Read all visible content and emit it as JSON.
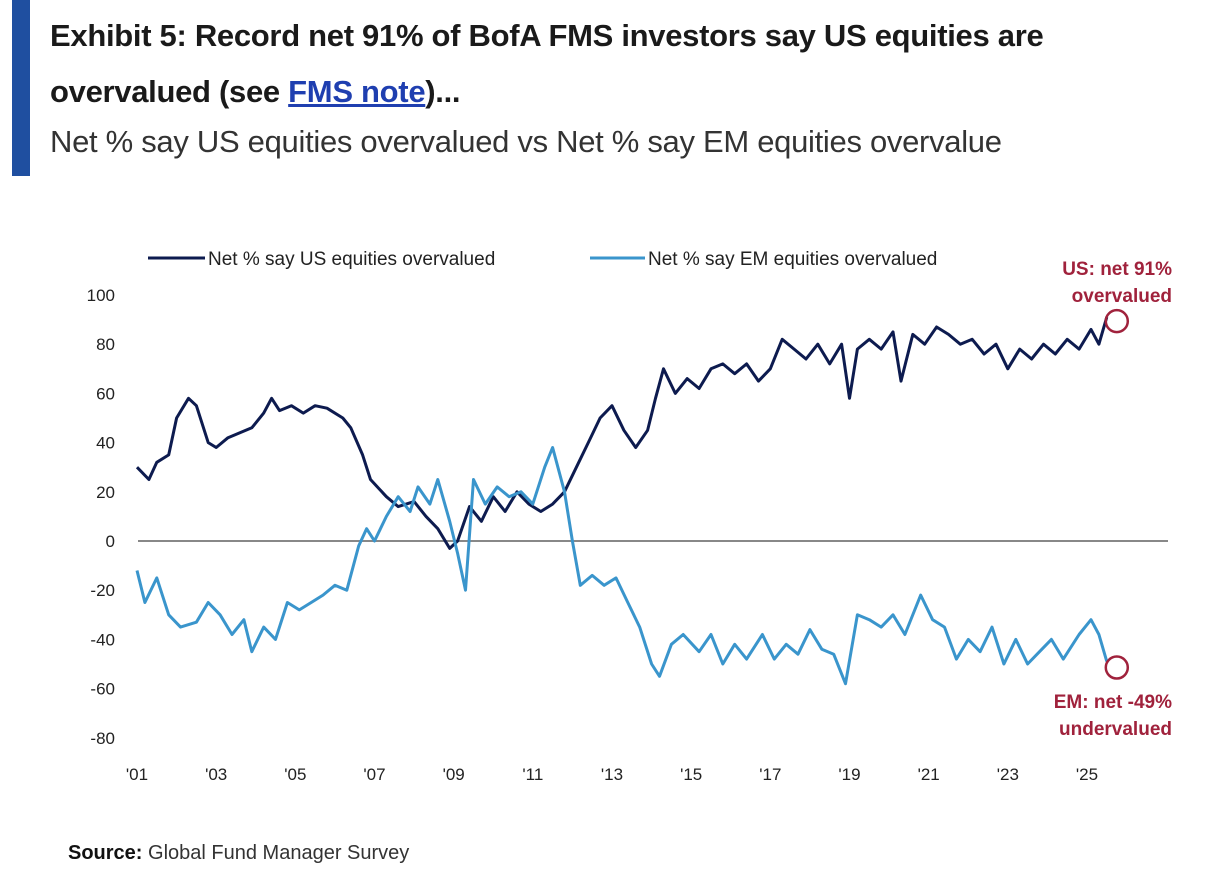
{
  "header": {
    "title_part1": "Exhibit 5: Record net 91% of BofA FMS investors say US equities are overvalued (see ",
    "title_link": "FMS note",
    "title_part2": ")...",
    "subtitle": "Net % say US equities overvalued vs Net % say EM equities overvalue"
  },
  "source": {
    "label": "Source:",
    "text": "Global Fund Manager Survey"
  },
  "colors": {
    "us": "#0d1b4f",
    "em": "#3a95cc",
    "annotation": "#a0223c",
    "accent": "#1f4fa0",
    "zero_line": "#888888"
  },
  "chart_data": {
    "type": "line",
    "ylim": [
      -80,
      100
    ],
    "yticks": [
      "100",
      "80",
      "60",
      "40",
      "20",
      "0",
      "-20",
      "-40",
      "-60",
      "-80"
    ],
    "xlim": [
      2001,
      2025
    ],
    "xticks": [
      "'01",
      "'03",
      "'05",
      "'07",
      "'09",
      "'11",
      "'13",
      "'15",
      "'17",
      "'19",
      "'21",
      "'23",
      "'25"
    ],
    "legend_position": "top",
    "grid": false,
    "series": [
      {
        "name": "Net % say US equities overvalued",
        "color": "#0d1b4f",
        "x": [
          2001.0,
          2001.3,
          2001.5,
          2001.8,
          2002.0,
          2002.3,
          2002.5,
          2002.8,
          2003.0,
          2003.3,
          2003.6,
          2003.9,
          2004.2,
          2004.4,
          2004.6,
          2004.9,
          2005.2,
          2005.5,
          2005.8,
          2006.2,
          2006.4,
          2006.7,
          2006.9,
          2007.3,
          2007.6,
          2008.0,
          2008.3,
          2008.6,
          2008.9,
          2009.1,
          2009.4,
          2009.7,
          2010.0,
          2010.3,
          2010.6,
          2010.9,
          2011.2,
          2011.5,
          2011.8,
          2012.1,
          2012.4,
          2012.7,
          2013.0,
          2013.3,
          2013.6,
          2013.9,
          2014.1,
          2014.3,
          2014.6,
          2014.9,
          2015.2,
          2015.5,
          2015.8,
          2016.1,
          2016.4,
          2016.7,
          2017.0,
          2017.3,
          2017.6,
          2017.9,
          2018.2,
          2018.5,
          2018.8,
          2019.0,
          2019.2,
          2019.5,
          2019.8,
          2020.1,
          2020.3,
          2020.6,
          2020.9,
          2021.2,
          2021.5,
          2021.8,
          2022.1,
          2022.4,
          2022.7,
          2023.0,
          2023.3,
          2023.6,
          2023.9,
          2024.2,
          2024.5,
          2024.8,
          2025.1,
          2025.3,
          2025.5
        ],
        "values": [
          30,
          25,
          32,
          35,
          50,
          58,
          55,
          40,
          38,
          42,
          44,
          46,
          52,
          58,
          53,
          55,
          52,
          55,
          54,
          50,
          46,
          35,
          25,
          18,
          14,
          16,
          10,
          5,
          -3,
          0,
          14,
          8,
          18,
          12,
          20,
          15,
          12,
          15,
          20,
          30,
          40,
          50,
          55,
          45,
          38,
          45,
          58,
          70,
          60,
          66,
          62,
          70,
          72,
          68,
          72,
          65,
          70,
          82,
          78,
          74,
          80,
          72,
          80,
          58,
          78,
          82,
          78,
          85,
          65,
          84,
          80,
          87,
          84,
          80,
          82,
          76,
          80,
          70,
          78,
          74,
          80,
          76,
          82,
          78,
          86,
          80,
          91
        ]
      },
      {
        "name": "Net % say EM equities overvalued",
        "color": "#3a95cc",
        "x": [
          2001.0,
          2001.2,
          2001.5,
          2001.8,
          2002.1,
          2002.5,
          2002.8,
          2003.1,
          2003.4,
          2003.7,
          2003.9,
          2004.2,
          2004.5,
          2004.8,
          2005.1,
          2005.4,
          2005.7,
          2006.0,
          2006.3,
          2006.6,
          2006.8,
          2007.0,
          2007.3,
          2007.6,
          2007.9,
          2008.1,
          2008.4,
          2008.6,
          2008.9,
          2009.1,
          2009.3,
          2009.5,
          2009.8,
          2010.1,
          2010.4,
          2010.7,
          2011.0,
          2011.3,
          2011.5,
          2011.8,
          2012.0,
          2012.2,
          2012.5,
          2012.8,
          2013.1,
          2013.4,
          2013.7,
          2014.0,
          2014.2,
          2014.5,
          2014.8,
          2015.2,
          2015.5,
          2015.8,
          2016.1,
          2016.4,
          2016.8,
          2017.1,
          2017.4,
          2017.7,
          2018.0,
          2018.3,
          2018.6,
          2018.9,
          2019.2,
          2019.5,
          2019.8,
          2020.1,
          2020.4,
          2020.8,
          2021.1,
          2021.4,
          2021.7,
          2022.0,
          2022.3,
          2022.6,
          2022.9,
          2023.2,
          2023.5,
          2023.8,
          2024.1,
          2024.4,
          2024.8,
          2025.1,
          2025.3,
          2025.5
        ],
        "values": [
          -12,
          -25,
          -15,
          -30,
          -35,
          -33,
          -25,
          -30,
          -38,
          -32,
          -45,
          -35,
          -40,
          -25,
          -28,
          -25,
          -22,
          -18,
          -20,
          -2,
          5,
          0,
          10,
          18,
          12,
          22,
          15,
          25,
          8,
          -5,
          -20,
          25,
          15,
          22,
          18,
          20,
          15,
          30,
          38,
          20,
          0,
          -18,
          -14,
          -18,
          -15,
          -25,
          -35,
          -50,
          -55,
          -42,
          -38,
          -45,
          -38,
          -50,
          -42,
          -48,
          -38,
          -48,
          -42,
          -46,
          -36,
          -44,
          -46,
          -58,
          -30,
          -32,
          -35,
          -30,
          -38,
          -22,
          -32,
          -35,
          -48,
          -40,
          -45,
          -35,
          -50,
          -40,
          -50,
          -45,
          -40,
          -48,
          -38,
          -32,
          -38,
          -49
        ]
      }
    ],
    "annotations": [
      {
        "series": 0,
        "line1": "US: net 91%",
        "line2": "overvalued"
      },
      {
        "series": 1,
        "line1": "EM: net -49%",
        "line2": "undervalued"
      }
    ]
  }
}
